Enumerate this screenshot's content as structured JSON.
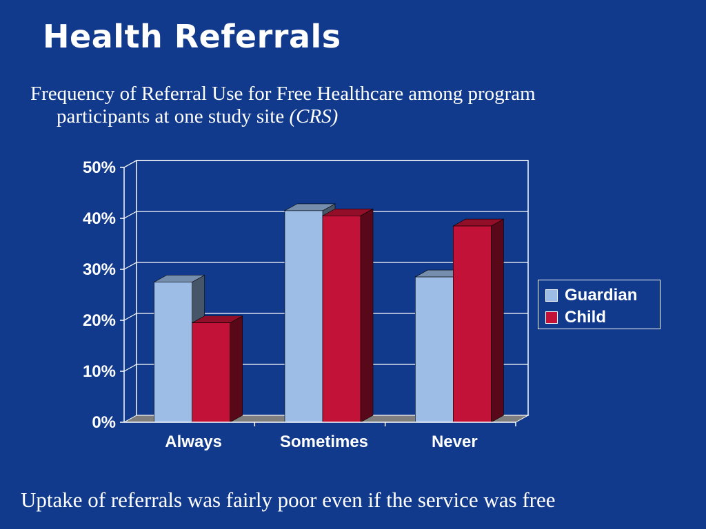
{
  "slide": {
    "title": "Health Referrals",
    "subtitle_line1": "Frequency of Referral Use for Free Healthcare among program",
    "subtitle_line2": "participants at one study site",
    "subtitle_source": "(CRS)",
    "footer": "Uptake of referrals was fairly poor even if the service was free"
  },
  "chart_data": {
    "type": "bar",
    "categories": [
      "Always",
      "Sometimes",
      "Never"
    ],
    "series": [
      {
        "name": "Guardian",
        "values": [
          27.5,
          41.5,
          28.5
        ],
        "color": "#9dbde6"
      },
      {
        "name": "Child",
        "values": [
          19.5,
          40.5,
          38.5
        ],
        "color": "#c31237"
      }
    ],
    "yticks": [
      "0%",
      "10%",
      "20%",
      "30%",
      "40%",
      "50%"
    ],
    "ylim": [
      0,
      50
    ],
    "grid": true,
    "legend": "right"
  }
}
